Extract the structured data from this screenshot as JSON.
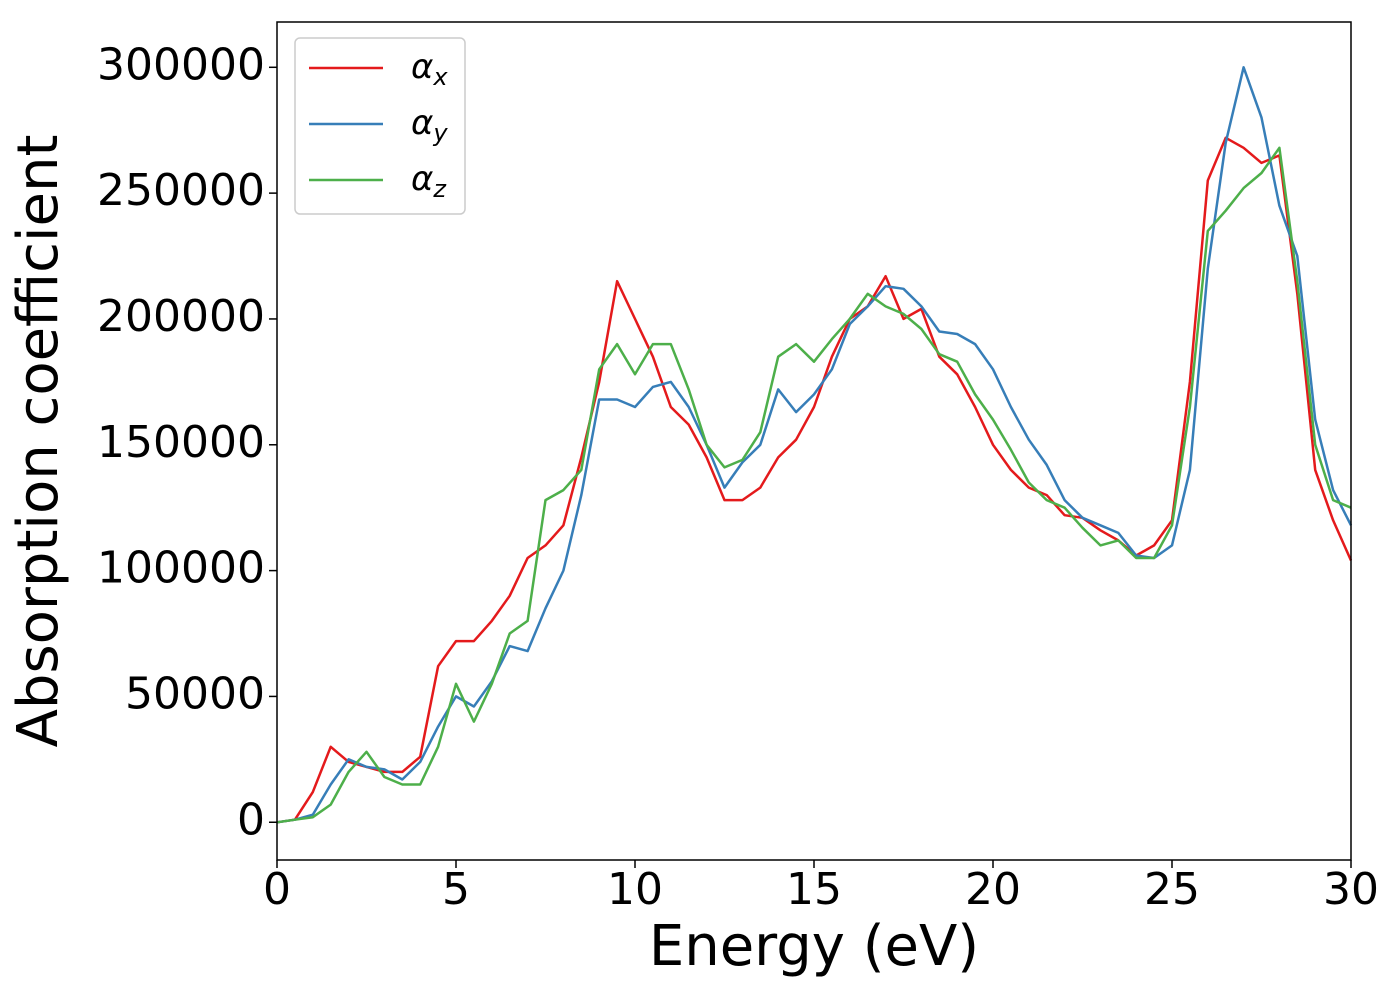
{
  "chart_data": {
    "type": "line",
    "xlabel": "Energy (eV)",
    "ylabel": "Absorption coefficient",
    "x": [
      0,
      0.5,
      1,
      1.5,
      2,
      2.5,
      3,
      3.5,
      4,
      4.5,
      5,
      5.5,
      6,
      6.5,
      7,
      7.5,
      8,
      8.5,
      9,
      9.5,
      10,
      10.5,
      11,
      11.5,
      12,
      12.5,
      13,
      13.5,
      14,
      14.5,
      15,
      15.5,
      16,
      16.5,
      17,
      17.5,
      18,
      18.5,
      19,
      19.5,
      20,
      20.5,
      21,
      21.5,
      22,
      22.5,
      23,
      23.5,
      24,
      24.5,
      25,
      25.5,
      26,
      26.5,
      27,
      27.5,
      28,
      28.5,
      29,
      29.5,
      30
    ],
    "series": [
      {
        "name": "αx",
        "color": "#e41a1c",
        "values": [
          0,
          1000,
          12000,
          30000,
          24000,
          22000,
          20000,
          20000,
          26000,
          62000,
          72000,
          72000,
          80000,
          90000,
          105000,
          110000,
          118000,
          145000,
          175000,
          215000,
          200000,
          185000,
          165000,
          158000,
          145000,
          128000,
          128000,
          133000,
          145000,
          152000,
          165000,
          185000,
          200000,
          205000,
          217000,
          200000,
          204000,
          185000,
          178000,
          165000,
          150000,
          140000,
          133000,
          130000,
          122000,
          121000,
          116000,
          112000,
          106000,
          110000,
          120000,
          175000,
          255000,
          272000,
          268000,
          262000,
          265000,
          210000,
          140000,
          120000,
          104000
        ]
      },
      {
        "name": "αy",
        "color": "#377eb8",
        "values": [
          0,
          1000,
          3000,
          15000,
          25000,
          22000,
          21000,
          17000,
          24000,
          38000,
          50000,
          46000,
          56000,
          70000,
          68000,
          85000,
          100000,
          130000,
          168000,
          168000,
          165000,
          173000,
          175000,
          165000,
          150000,
          133000,
          143000,
          150000,
          172000,
          163000,
          170000,
          180000,
          198000,
          205000,
          213000,
          212000,
          205000,
          195000,
          194000,
          190000,
          180000,
          165000,
          152000,
          142000,
          128000,
          121000,
          118000,
          115000,
          106000,
          105000,
          110000,
          140000,
          220000,
          270000,
          300000,
          280000,
          245000,
          225000,
          160000,
          132000,
          118000
        ]
      },
      {
        "name": "αz",
        "color": "#4daf4a",
        "values": [
          0,
          1000,
          2000,
          7000,
          20000,
          28000,
          18000,
          15000,
          15000,
          30000,
          55000,
          40000,
          55000,
          75000,
          80000,
          128000,
          132000,
          140000,
          180000,
          190000,
          178000,
          190000,
          190000,
          172000,
          150000,
          141000,
          144000,
          155000,
          185000,
          190000,
          183000,
          192000,
          200000,
          210000,
          205000,
          202000,
          196000,
          186000,
          183000,
          170000,
          160000,
          148000,
          135000,
          128000,
          125000,
          117000,
          110000,
          112000,
          105000,
          105000,
          118000,
          165000,
          235000,
          243000,
          252000,
          258000,
          268000,
          215000,
          150000,
          128000,
          125000
        ]
      }
    ],
    "xlim": [
      0,
      30
    ],
    "xticks": [
      0,
      5,
      10,
      15,
      20,
      25,
      30
    ],
    "ylim": [
      -15000,
      318000
    ],
    "yticks": [
      0,
      50000,
      100000,
      150000,
      200000,
      250000,
      300000
    ],
    "legend": "upper left",
    "grid": false
  }
}
